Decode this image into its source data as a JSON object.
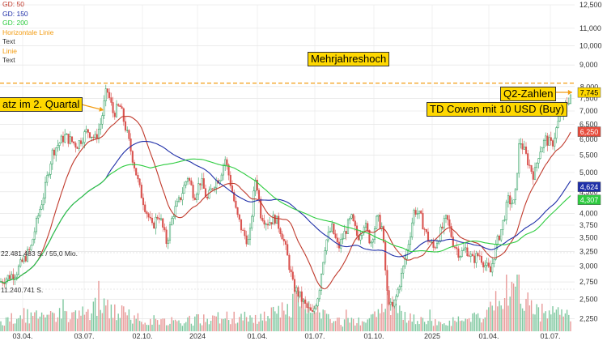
{
  "legend": {
    "items": [
      {
        "label": "GD: 50",
        "color": "#c0392b"
      },
      {
        "label": "GD: 150",
        "color": "#1f2fa8"
      },
      {
        "label": "GD: 200",
        "color": "#2ecc40"
      },
      {
        "label": "Horizontale Linie",
        "color": "#f39c12"
      },
      {
        "label": "Text",
        "color": "#333333"
      },
      {
        "label": "Linie",
        "color": "#f39c12"
      },
      {
        "label": "Text",
        "color": "#333333"
      }
    ]
  },
  "annotations": {
    "multiyear_high": "Mehrjahreshoch",
    "q2_quarter": "atz im 2. Quartal",
    "q2_results": "Q2-Zahlen",
    "td_cowen": "TD Cowen mit 10 USD (Buy)"
  },
  "chart_data": {
    "type": "line",
    "x_tick_labels": [
      "03.04.",
      "03.07.",
      "02.10.",
      "2024",
      "01.04.",
      "01.07.",
      "01.10.",
      "2025",
      "01.04.",
      "01.07."
    ],
    "y_tick_labels": [
      "2,250",
      "2,500",
      "2,750",
      "3,000",
      "3,250",
      "3,500",
      "3,750",
      "4,000",
      "4,500",
      "5,000",
      "5,500",
      "6,000",
      "6,500",
      "7,000",
      "7,500",
      "8,000",
      "9,000",
      "10,000",
      "11,000",
      "12,500"
    ],
    "y_log_scale": true,
    "ylim": [
      2.1,
      12.5
    ],
    "horizontal_line": 8.15,
    "price_badges": [
      {
        "label": "8,000",
        "value": 8.0,
        "color": "#ffffff",
        "text_color": "#333333"
      },
      {
        "label": "7,745",
        "value": 7.745,
        "color": "#ffd800",
        "text_color": "#000000"
      },
      {
        "label": "6,250",
        "value": 6.25,
        "color": "#e74c3c",
        "text_color": "#ffffff"
      },
      {
        "label": "4,624",
        "value": 4.624,
        "color": "#1f2fa8",
        "text_color": "#ffffff"
      },
      {
        "label": "4,307",
        "value": 4.307,
        "color": "#2ecc40",
        "text_color": "#ffffff"
      }
    ],
    "volume_labels": [
      "22.481.483 S. / 55,0 Mio.",
      "11.240.741 S."
    ],
    "price_anchors": [
      [
        0,
        2.75
      ],
      [
        20,
        2.9
      ],
      [
        38,
        3.3
      ],
      [
        55,
        4.5
      ],
      [
        65,
        5.6
      ],
      [
        80,
        6.1
      ],
      [
        95,
        5.8
      ],
      [
        108,
        6.3
      ],
      [
        118,
        6.0
      ],
      [
        125,
        6.6
      ],
      [
        132,
        7.9
      ],
      [
        140,
        6.9
      ],
      [
        148,
        7.2
      ],
      [
        155,
        6.4
      ],
      [
        162,
        5.6
      ],
      [
        172,
        4.6
      ],
      [
        180,
        4.1
      ],
      [
        188,
        3.7
      ],
      [
        196,
        4.0
      ],
      [
        206,
        3.4
      ],
      [
        214,
        4.0
      ],
      [
        222,
        4.3
      ],
      [
        232,
        4.9
      ],
      [
        240,
        4.4
      ],
      [
        248,
        4.8
      ],
      [
        256,
        4.3
      ],
      [
        264,
        4.7
      ],
      [
        272,
        4.9
      ],
      [
        278,
        5.4
      ],
      [
        284,
        4.8
      ],
      [
        292,
        4.0
      ],
      [
        300,
        3.6
      ],
      [
        308,
        3.4
      ],
      [
        316,
        4.9
      ],
      [
        322,
        4.0
      ],
      [
        330,
        3.8
      ],
      [
        340,
        3.9
      ],
      [
        348,
        3.6
      ],
      [
        356,
        3.1
      ],
      [
        362,
        2.7
      ],
      [
        370,
        2.55
      ],
      [
        378,
        2.4
      ],
      [
        386,
        2.3
      ],
      [
        394,
        2.6
      ],
      [
        402,
        3.4
      ],
      [
        410,
        3.7
      ],
      [
        418,
        3.3
      ],
      [
        426,
        3.6
      ],
      [
        434,
        3.9
      ],
      [
        442,
        3.5
      ],
      [
        450,
        3.8
      ],
      [
        458,
        3.4
      ],
      [
        466,
        3.9
      ],
      [
        472,
        3.7
      ],
      [
        478,
        2.6
      ],
      [
        484,
        2.35
      ],
      [
        490,
        2.55
      ],
      [
        498,
        2.95
      ],
      [
        506,
        3.5
      ],
      [
        512,
        4.1
      ],
      [
        520,
        3.9
      ],
      [
        528,
        3.5
      ],
      [
        536,
        3.3
      ],
      [
        544,
        3.6
      ],
      [
        552,
        3.9
      ],
      [
        560,
        3.4
      ],
      [
        568,
        3.2
      ],
      [
        576,
        3.3
      ],
      [
        584,
        3.1
      ],
      [
        592,
        3.2
      ],
      [
        600,
        3.0
      ],
      [
        606,
        2.9
      ],
      [
        612,
        3.3
      ],
      [
        620,
        3.7
      ],
      [
        628,
        4.3
      ],
      [
        636,
        4.2
      ],
      [
        642,
        6.0
      ],
      [
        648,
        5.6
      ],
      [
        654,
        5.2
      ],
      [
        660,
        4.9
      ],
      [
        666,
        5.6
      ],
      [
        674,
        6.0
      ],
      [
        682,
        5.8
      ],
      [
        690,
        6.6
      ],
      [
        696,
        7.1
      ],
      [
        702,
        7.4
      ],
      [
        706,
        7.745
      ]
    ],
    "vol_anchors": [
      [
        0,
        0.2
      ],
      [
        30,
        0.35
      ],
      [
        60,
        0.3
      ],
      [
        90,
        0.4
      ],
      [
        130,
        0.55
      ],
      [
        160,
        0.35
      ],
      [
        200,
        0.2
      ],
      [
        240,
        0.25
      ],
      [
        280,
        0.3
      ],
      [
        320,
        0.25
      ],
      [
        350,
        0.45
      ],
      [
        370,
        0.75
      ],
      [
        390,
        0.4
      ],
      [
        420,
        0.2
      ],
      [
        460,
        0.25
      ],
      [
        480,
        0.6
      ],
      [
        500,
        0.3
      ],
      [
        540,
        0.2
      ],
      [
        580,
        0.25
      ],
      [
        610,
        0.5
      ],
      [
        640,
        0.95
      ],
      [
        660,
        0.4
      ],
      [
        700,
        0.35
      ],
      [
        706,
        0.3
      ]
    ]
  }
}
